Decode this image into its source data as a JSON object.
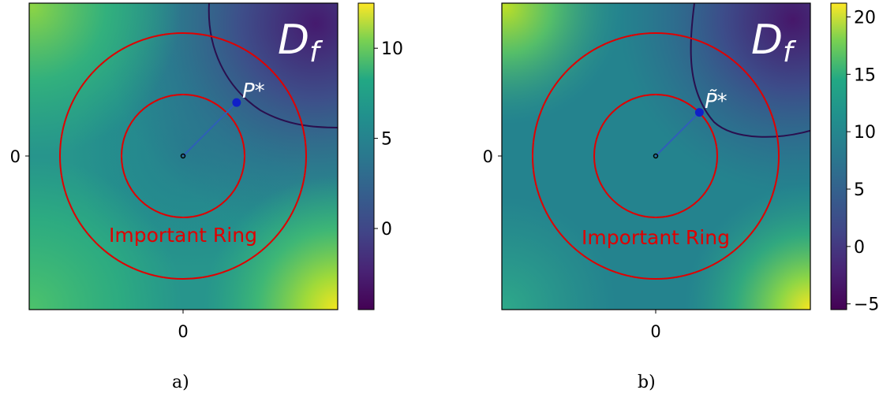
{
  "chart_data": [
    {
      "type": "heatmap",
      "panel_label": "a)",
      "x_ticks": [
        "0"
      ],
      "y_ticks": [
        "0"
      ],
      "colorbar": {
        "range": [
          -4.5,
          12.5
        ],
        "ticks": [
          0,
          5,
          10
        ],
        "tick_labels": [
          "0",
          "5",
          "10"
        ],
        "colormap": "viridis"
      },
      "annotations": {
        "region_label": "D_f",
        "point_label": "P*",
        "ring_label": "Important Ring"
      },
      "rings": [
        {
          "radius": 1.0,
          "color": "#e00000"
        },
        {
          "radius": 2.0,
          "color": "#e00000"
        }
      ],
      "origin": [
        0,
        0
      ],
      "point": [
        0.87,
        0.87
      ],
      "boundary_color": "#2a0f4e",
      "point_color": "#1020c8"
    },
    {
      "type": "heatmap",
      "panel_label": "b)",
      "x_ticks": [
        "0"
      ],
      "y_ticks": [
        "0"
      ],
      "colorbar": {
        "range": [
          -5.5,
          21.2
        ],
        "ticks": [
          -5,
          0,
          5,
          10,
          15,
          20
        ],
        "tick_labels": [
          "−5",
          "0",
          "5",
          "10",
          "15",
          "20"
        ],
        "colormap": "viridis"
      },
      "annotations": {
        "region_label": "D_f",
        "point_label": "P̃*",
        "ring_label": "Important Ring"
      },
      "rings": [
        {
          "radius": 1.0,
          "color": "#e00000"
        },
        {
          "radius": 2.0,
          "color": "#e00000"
        }
      ],
      "origin": [
        0,
        0
      ],
      "point": [
        0.71,
        0.71
      ],
      "boundary_color": "#2a0f4e",
      "point_color": "#1020c8"
    }
  ],
  "captions": [
    "a)",
    "b)"
  ]
}
